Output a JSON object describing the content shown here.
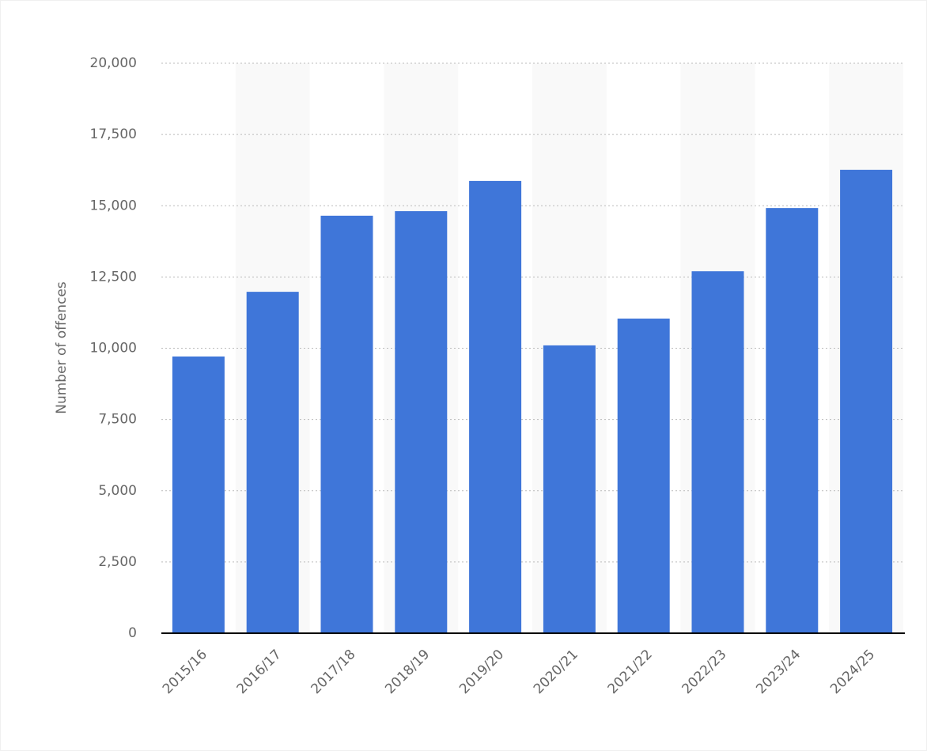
{
  "chart_data": {
    "type": "bar",
    "y_label": "Number of offences",
    "categories": [
      "2015/16",
      "2016/17",
      "2017/18",
      "2018/19",
      "2019/20",
      "2020/21",
      "2021/22",
      "2022/23",
      "2023/24",
      "2024/25"
    ],
    "values": [
      9710,
      11980,
      14650,
      14810,
      15870,
      10100,
      11040,
      12700,
      14920,
      16260
    ],
    "color": "#3f76d9",
    "ylim": [
      0,
      20000
    ],
    "yticks": [
      0,
      {
        "value": 2500,
        "label": "2,500"
      },
      {
        "value": 5000,
        "label": "5,000"
      },
      {
        "value": 7500,
        "label": "7,500"
      },
      {
        "value": 10000,
        "label": "10,000"
      },
      {
        "value": 12500,
        "label": "12,500"
      },
      {
        "value": 15000,
        "label": "15,000"
      },
      {
        "value": 17500,
        "label": "17,500"
      },
      {
        "value": 20000,
        "label": "20,000"
      }
    ],
    "grid": true
  }
}
